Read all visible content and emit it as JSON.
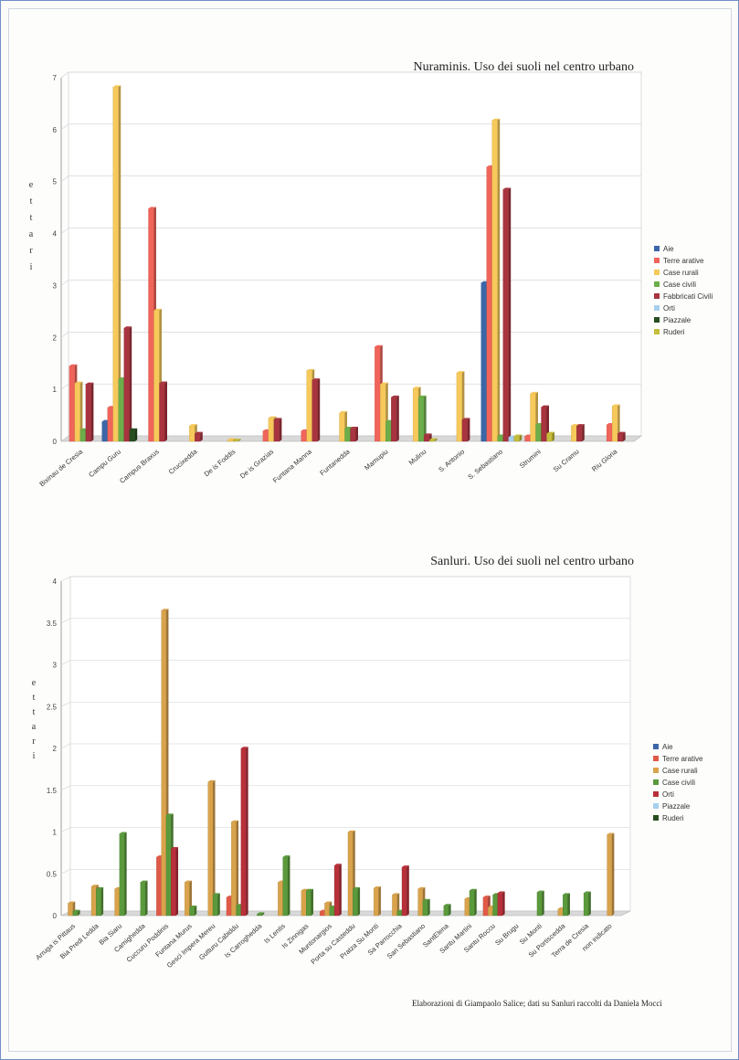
{
  "footer": {
    "credit": "Elaborazioni di Giampaolo Salice; dati su Sanluri raccolti da Daniela Mocci"
  },
  "chart_data": [
    {
      "type": "bar",
      "title": "Nuraminis. Uso dei suoli nel centro urbano",
      "ylabel": "ettari",
      "ylim": [
        0,
        7
      ],
      "yticks": [
        "0",
        "1",
        "2",
        "3",
        "4",
        "5",
        "6",
        "7"
      ],
      "grid": true,
      "legend_position": "right",
      "categories": [
        "Bixinau de Cresia",
        "Campu Guru",
        "Campus Braxus",
        "Crucixedda",
        "De is Foddis",
        "De is Grazias",
        "Funtana Manna",
        "Funtanedda",
        "Mamupiu",
        "Mulinu",
        "S. Antonio",
        "S. Sebastiano",
        "Strumini",
        "Su Cramu",
        "Riu Gloria"
      ],
      "series": [
        {
          "name": "Aie",
          "color": "#3b66a8",
          "values": [
            0,
            0.38,
            0,
            0,
            0,
            0,
            0,
            0,
            0,
            0,
            0,
            3.05,
            0,
            0,
            0
          ]
        },
        {
          "name": "Terre arative",
          "color": "#f0645a",
          "values": [
            1.45,
            0.65,
            4.48,
            0,
            0,
            0.2,
            0.2,
            0,
            1.82,
            0,
            0,
            5.28,
            0.1,
            0,
            0.32
          ]
        },
        {
          "name": "Case rurali",
          "color": "#f6c95a",
          "values": [
            1.12,
            6.82,
            2.52,
            0.3,
            0.03,
            0.45,
            1.36,
            0.55,
            1.1,
            1.02,
            1.32,
            6.18,
            0.92,
            0.3,
            0.68
          ]
        },
        {
          "name": "Case civili",
          "color": "#6cae4a",
          "values": [
            0.22,
            1.2,
            0,
            0,
            0,
            0,
            0,
            0.25,
            0.38,
            0.85,
            0,
            0.1,
            0.32,
            0,
            0
          ]
        },
        {
          "name": "Fabbricati Civili",
          "color": "#a8343f",
          "values": [
            1.1,
            2.18,
            1.12,
            0.15,
            0,
            0.42,
            1.18,
            0.25,
            0.85,
            0.12,
            0.42,
            4.85,
            0.66,
            0.3,
            0.15
          ]
        },
        {
          "name": "Orti",
          "color": "#a6d0ee",
          "values": [
            0,
            0,
            0,
            0,
            0,
            0,
            0,
            0,
            0,
            0,
            0,
            0.08,
            0,
            0,
            0
          ]
        },
        {
          "name": "Piazzale",
          "color": "#274d20",
          "values": [
            0,
            0.22,
            0,
            0,
            0,
            0,
            0,
            0,
            0,
            0,
            0,
            0,
            0,
            0,
            0
          ]
        },
        {
          "name": "Ruderi",
          "color": "#c5bd3c",
          "values": [
            0,
            0,
            0,
            0,
            0.02,
            0,
            0,
            0,
            0,
            0.03,
            0,
            0.1,
            0.15,
            0,
            0
          ]
        }
      ]
    },
    {
      "type": "bar",
      "title": "Sanluri. Uso dei suoli nel centro urbano",
      "ylabel": "ettari",
      "ylim": [
        0,
        4
      ],
      "yticks": [
        "0",
        "0.5",
        "1",
        "1.5",
        "2",
        "2.5",
        "3",
        "3.5",
        "4"
      ],
      "grid": true,
      "legend_position": "right",
      "categories": [
        "Arruga is Pittaus",
        "Bia Predi Ledda",
        "Bia Siaru",
        "Camighedda",
        "Cuccuru Poddinis",
        "Funtana Murus",
        "Gesci Impera Mereu",
        "Gutturu Cabiddu",
        "Is Carroghedda",
        "Is Lentis",
        "Is Zinnigas",
        "Muntonargios",
        "Porta su Casteddu",
        "Pratza Su Monti",
        "Sa Parrocchia",
        "San Sebastiano",
        "SantElena",
        "Santu Martini",
        "Santu Roccu",
        "Su Brugu",
        "Su Monti",
        "Su Portiscedda",
        "Terra de Cresia",
        "non indicato"
      ],
      "series": [
        {
          "name": "Aie",
          "color": "#3b66a8",
          "values": [
            0,
            0,
            0,
            0,
            0,
            0,
            0,
            0,
            0,
            0,
            0,
            0,
            0,
            0,
            0,
            0,
            0,
            0,
            0,
            0,
            0,
            0,
            0,
            0
          ]
        },
        {
          "name": "Terre arative",
          "color": "#e05a48",
          "values": [
            0,
            0,
            0,
            0,
            0.7,
            0,
            0,
            0.22,
            0,
            0,
            0,
            0.05,
            0,
            0,
            0,
            0,
            0,
            0,
            0.22,
            0,
            0,
            0,
            0,
            0
          ]
        },
        {
          "name": "Case rurali",
          "color": "#d9a34c",
          "values": [
            0.15,
            0.35,
            0.32,
            0,
            3.65,
            0.4,
            1.6,
            1.12,
            0,
            0.4,
            0.3,
            0.15,
            1.0,
            0.33,
            0.25,
            0.32,
            0,
            0.2,
            0.1,
            0,
            0,
            0.08,
            0,
            0.97
          ]
        },
        {
          "name": "Case civili",
          "color": "#5a9a3c",
          "values": [
            0.05,
            0.32,
            0.98,
            0.4,
            1.2,
            0.1,
            0.25,
            0.12,
            0.02,
            0.7,
            0.3,
            0.1,
            0.32,
            0,
            0.05,
            0.18,
            0.12,
            0.3,
            0.25,
            0,
            0.28,
            0.25,
            0.27,
            0
          ]
        },
        {
          "name": "Orti",
          "color": "#b8303a",
          "values": [
            0,
            0,
            0,
            0,
            0.8,
            0,
            0,
            2.0,
            0,
            0,
            0,
            0.6,
            0,
            0,
            0.58,
            0,
            0,
            0,
            0.27,
            0,
            0,
            0,
            0,
            0
          ]
        },
        {
          "name": "Piazzale",
          "color": "#a6d0ee",
          "values": [
            0,
            0,
            0,
            0,
            0,
            0,
            0,
            0,
            0,
            0,
            0,
            0,
            0,
            0,
            0,
            0,
            0,
            0,
            0,
            0,
            0,
            0,
            0,
            0
          ]
        },
        {
          "name": "Ruderi",
          "color": "#274d20",
          "values": [
            0,
            0,
            0,
            0,
            0,
            0,
            0,
            0,
            0,
            0,
            0,
            0,
            0,
            0,
            0,
            0,
            0,
            0,
            0,
            0,
            0,
            0,
            0,
            0
          ]
        }
      ]
    }
  ]
}
